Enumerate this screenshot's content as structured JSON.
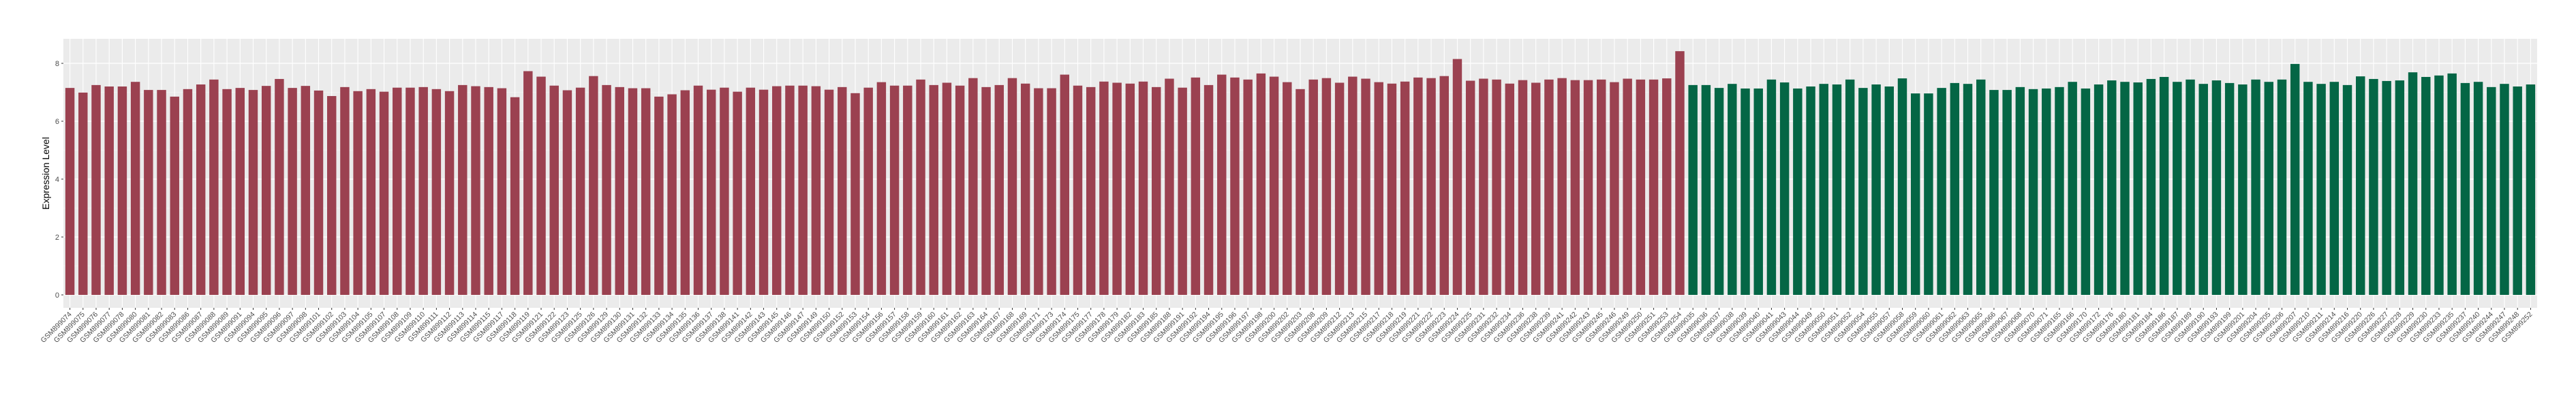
{
  "chart_data": {
    "type": "bar",
    "title": "",
    "xlabel": "",
    "ylabel": "Expression Level",
    "ylim": [
      -0.45,
      8.85
    ],
    "yticks": [
      "0",
      "2",
      "4",
      "6",
      "8"
    ],
    "grid": true,
    "legend": "none",
    "background": "#EBEBEB",
    "series": [
      {
        "color": "#9B4150",
        "categories": [
          "GSM899074",
          "GSM899075",
          "GSM899076",
          "GSM899077",
          "GSM899078",
          "GSM899080",
          "GSM899081",
          "GSM899082",
          "GSM899083",
          "GSM899086",
          "GSM899087",
          "GSM899088",
          "GSM899089",
          "GSM899091",
          "GSM899094",
          "GSM899095",
          "GSM899096",
          "GSM899097",
          "GSM899098",
          "GSM899101",
          "GSM899102",
          "GSM899103",
          "GSM899104",
          "GSM899105",
          "GSM899107",
          "GSM899108",
          "GSM899109",
          "GSM899110",
          "GSM899111",
          "GSM899112",
          "GSM899113",
          "GSM899114",
          "GSM899115",
          "GSM899117",
          "GSM899118",
          "GSM899119",
          "GSM899121",
          "GSM899122",
          "GSM899123",
          "GSM899125",
          "GSM899126",
          "GSM899129",
          "GSM899130",
          "GSM899131",
          "GSM899132",
          "GSM899133",
          "GSM899134",
          "GSM899135",
          "GSM899136",
          "GSM899137",
          "GSM899138",
          "GSM899141",
          "GSM899142",
          "GSM899143",
          "GSM899145",
          "GSM899146",
          "GSM899147",
          "GSM899149",
          "GSM899150",
          "GSM899152",
          "GSM899153",
          "GSM899154",
          "GSM899156",
          "GSM899157",
          "GSM899158",
          "GSM899159",
          "GSM899160",
          "GSM899161",
          "GSM899162",
          "GSM899163",
          "GSM899164",
          "GSM899167",
          "GSM899168",
          "GSM899169",
          "GSM899171",
          "GSM899173",
          "GSM899174",
          "GSM899175",
          "GSM899177",
          "GSM899178",
          "GSM899179",
          "GSM899182",
          "GSM899183",
          "GSM899185",
          "GSM899188",
          "GSM899191",
          "GSM899192",
          "GSM899194",
          "GSM899195",
          "GSM899196",
          "GSM899197",
          "GSM899198",
          "GSM899200",
          "GSM899202",
          "GSM899203",
          "GSM899208",
          "GSM899209",
          "GSM899212",
          "GSM899213",
          "GSM899215",
          "GSM899217",
          "GSM899218",
          "GSM899219",
          "GSM899221",
          "GSM899222",
          "GSM899223",
          "GSM899224",
          "GSM899225",
          "GSM899231",
          "GSM899232",
          "GSM899234",
          "GSM899236",
          "GSM899238",
          "GSM899239",
          "GSM899241",
          "GSM899242",
          "GSM899243",
          "GSM899245",
          "GSM899246",
          "GSM899249",
          "GSM899250",
          "GSM899251",
          "GSM899253",
          "GSM899254"
        ],
        "values": [
          7.15,
          6.99,
          7.25,
          7.2,
          7.2,
          7.36,
          7.08,
          7.08,
          6.85,
          7.11,
          7.27,
          7.44,
          7.11,
          7.15,
          7.08,
          7.22,
          7.46,
          7.15,
          7.22,
          7.06,
          6.87,
          7.18,
          7.04,
          7.11,
          7.02,
          7.16,
          7.16,
          7.18,
          7.11,
          7.04,
          7.25,
          7.21,
          7.18,
          7.14,
          6.83,
          7.73,
          7.54,
          7.23,
          7.07,
          7.16,
          7.56,
          7.25,
          7.18,
          7.14,
          7.14,
          6.85,
          6.93,
          7.07,
          7.23,
          7.09,
          7.16,
          7.02,
          7.16,
          7.09,
          7.21,
          7.23,
          7.23,
          7.21,
          7.09,
          7.18,
          6.97,
          7.16,
          7.35,
          7.23,
          7.23,
          7.44,
          7.25,
          7.33,
          7.23,
          7.49,
          7.18,
          7.25,
          7.49,
          7.3,
          7.14,
          7.14,
          7.61,
          7.23,
          7.18,
          7.37,
          7.33,
          7.3,
          7.37,
          7.18,
          7.47,
          7.16,
          7.51,
          7.25,
          7.61,
          7.51,
          7.44,
          7.65,
          7.54,
          7.35,
          7.11,
          7.44,
          7.49,
          7.33,
          7.54,
          7.47,
          7.35,
          7.3,
          7.37,
          7.51,
          7.49,
          7.56,
          8.15,
          7.4,
          7.47,
          7.44,
          7.3,
          7.42,
          7.33,
          7.44,
          7.49,
          7.42,
          7.42,
          7.44,
          7.35,
          7.47,
          7.44,
          7.44,
          7.48,
          8.42
        ]
      },
      {
        "color": "#046645",
        "categories": [
          "GSM899035",
          "GSM899036",
          "GSM899037",
          "GSM899038",
          "GSM899039",
          "GSM899040",
          "GSM899041",
          "GSM899043",
          "GSM899044",
          "GSM899049",
          "GSM899050",
          "GSM899051",
          "GSM899052",
          "GSM899054",
          "GSM899055",
          "GSM899057",
          "GSM899058",
          "GSM899059",
          "GSM899060",
          "GSM899061",
          "GSM899062",
          "GSM899063",
          "GSM899065",
          "GSM899066",
          "GSM899067",
          "GSM899068",
          "GSM899070",
          "GSM899071",
          "GSM899165",
          "GSM899166",
          "GSM899170",
          "GSM899172",
          "GSM899176",
          "GSM899180",
          "GSM899181",
          "GSM899184",
          "GSM899186",
          "GSM899187",
          "GSM899189",
          "GSM899190",
          "GSM899193",
          "GSM899199",
          "GSM899201",
          "GSM899204",
          "GSM899205",
          "GSM899206",
          "GSM899207",
          "GSM899210",
          "GSM899211",
          "GSM899214",
          "GSM899216",
          "GSM899220",
          "GSM899226",
          "GSM899227",
          "GSM899228",
          "GSM899229",
          "GSM899230",
          "GSM899233",
          "GSM899235",
          "GSM899237",
          "GSM899240",
          "GSM899244",
          "GSM899247",
          "GSM899248",
          "GSM899252"
        ],
        "values": [
          7.25,
          7.25,
          7.15,
          7.29,
          7.13,
          7.13,
          7.44,
          7.34,
          7.13,
          7.2,
          7.29,
          7.27,
          7.44,
          7.15,
          7.27,
          7.2,
          7.48,
          6.96,
          6.96,
          7.15,
          7.32,
          7.29,
          7.44,
          7.08,
          7.08,
          7.18,
          7.11,
          7.13,
          7.18,
          7.36,
          7.13,
          7.27,
          7.41,
          7.36,
          7.34,
          7.46,
          7.53,
          7.36,
          7.44,
          7.29,
          7.41,
          7.32,
          7.27,
          7.44,
          7.36,
          7.44,
          7.98,
          7.36,
          7.29,
          7.36,
          7.25,
          7.55,
          7.46,
          7.39,
          7.41,
          7.69,
          7.53,
          7.58,
          7.65,
          7.32,
          7.36,
          7.18,
          7.29,
          7.2,
          7.27
        ]
      }
    ]
  }
}
